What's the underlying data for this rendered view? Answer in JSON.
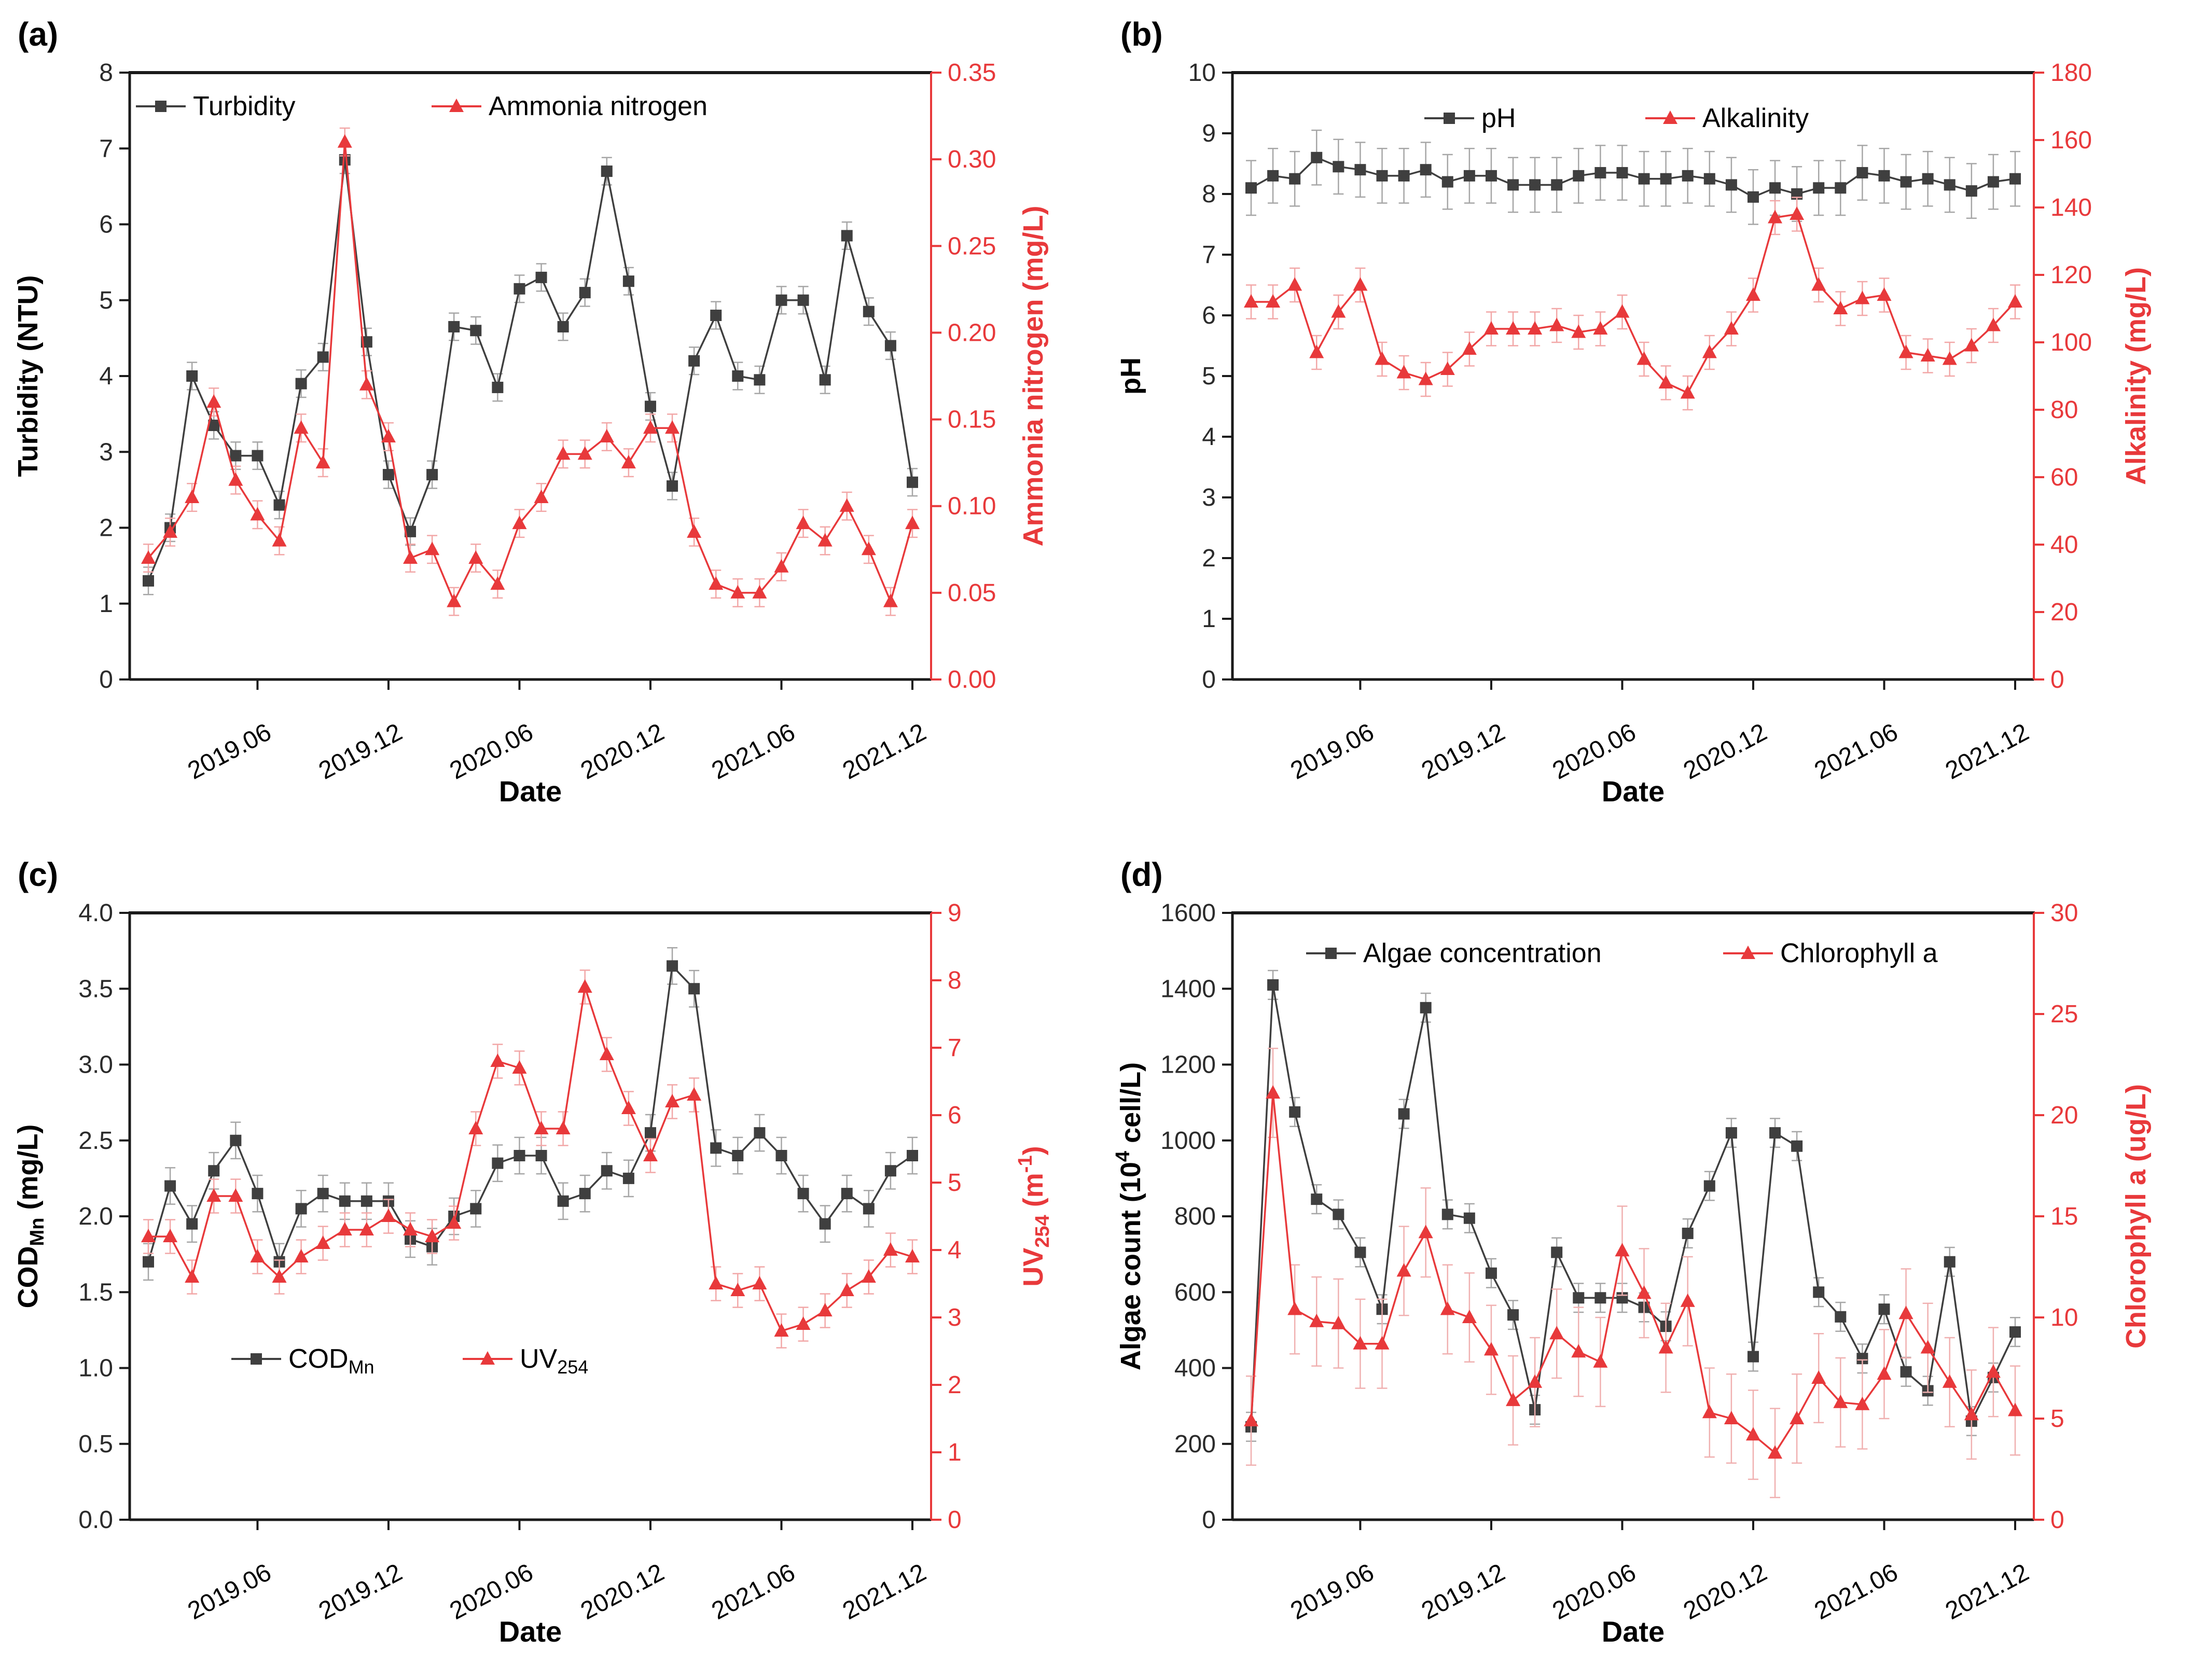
{
  "figure_title": "",
  "accent_colors": {
    "series_black": "#3f3f3f",
    "series_red": "#e8393b",
    "spine_black": "#1a1a1a"
  },
  "chart_data": [
    {
      "id": "a",
      "type": "line",
      "tag": "(a)",
      "xlabel": "Date",
      "x_ticks": [
        {
          "index": 5,
          "label": "2019.06"
        },
        {
          "index": 11,
          "label": "2019.12"
        },
        {
          "index": 17,
          "label": "2020.06"
        },
        {
          "index": 23,
          "label": "2020.12"
        },
        {
          "index": 29,
          "label": "2021.06"
        },
        {
          "index": 35,
          "label": "2021.12"
        }
      ],
      "left_axis": {
        "title": "Turbidity (NTU)",
        "min": 0,
        "max": 8,
        "tick_labels": [
          "0",
          "1",
          "2",
          "3",
          "4",
          "5",
          "6",
          "7",
          "8"
        ],
        "color": "#1a1a1a"
      },
      "right_axis": {
        "title": "Ammonia nitrogen (mg/L)",
        "min": 0,
        "max": 0.35,
        "tick_labels": [
          "0.00",
          "0.05",
          "0.10",
          "0.15",
          "0.20",
          "0.25",
          "0.30",
          "0.35"
        ],
        "color": "#e8393b"
      },
      "series": [
        {
          "name": "Turbidity",
          "axis": "left",
          "marker": "square",
          "color": "#3f3f3f",
          "err": 0.18,
          "err_color": "#a6a6a6",
          "values": [
            1.3,
            2.0,
            4.0,
            3.35,
            2.95,
            2.95,
            2.3,
            3.9,
            4.25,
            6.85,
            4.45,
            2.7,
            1.95,
            2.7,
            4.65,
            4.6,
            3.85,
            5.15,
            5.3,
            4.65,
            5.1,
            6.7,
            5.25,
            3.6,
            2.55,
            4.2,
            4.8,
            4.0,
            3.95,
            5.0,
            5.0,
            3.95,
            5.85,
            4.85,
            4.4,
            2.6
          ]
        },
        {
          "name": "Ammonia nitrogen",
          "axis": "right",
          "marker": "triangle",
          "color": "#e8393b",
          "err": 0.008,
          "err_color": "#f2a7a7",
          "values": [
            0.07,
            0.085,
            0.105,
            0.16,
            0.115,
            0.095,
            0.08,
            0.145,
            0.125,
            0.31,
            0.17,
            0.14,
            0.07,
            0.075,
            0.045,
            0.07,
            0.055,
            0.09,
            0.105,
            0.13,
            0.13,
            0.14,
            0.125,
            0.145,
            0.145,
            0.085,
            0.055,
            0.05,
            0.05,
            0.065,
            0.09,
            0.08,
            0.1,
            0.075,
            0.045,
            0.09
          ]
        }
      ]
    },
    {
      "id": "b",
      "type": "line",
      "tag": "(b)",
      "xlabel": "Date",
      "x_ticks": [
        {
          "index": 5,
          "label": "2019.06"
        },
        {
          "index": 11,
          "label": "2019.12"
        },
        {
          "index": 17,
          "label": "2020.06"
        },
        {
          "index": 23,
          "label": "2020.12"
        },
        {
          "index": 29,
          "label": "2021.06"
        },
        {
          "index": 35,
          "label": "2021.12"
        }
      ],
      "left_axis": {
        "title": "pH",
        "min": 0,
        "max": 10,
        "tick_labels": [
          "0",
          "1",
          "2",
          "3",
          "4",
          "5",
          "6",
          "7",
          "8",
          "9",
          "10"
        ],
        "color": "#1a1a1a"
      },
      "right_axis": {
        "title": "Alkalinity (mg/L)",
        "min": 0,
        "max": 180,
        "tick_labels": [
          "0",
          "20",
          "40",
          "60",
          "80",
          "100",
          "120",
          "140",
          "160",
          "180"
        ],
        "color": "#e8393b"
      },
      "series": [
        {
          "name": "pH",
          "axis": "left",
          "marker": "square",
          "color": "#3f3f3f",
          "err": 0.45,
          "err_color": "#a6a6a6",
          "values": [
            8.1,
            8.3,
            8.25,
            8.6,
            8.45,
            8.4,
            8.3,
            8.3,
            8.4,
            8.2,
            8.3,
            8.3,
            8.15,
            8.15,
            8.15,
            8.3,
            8.35,
            8.35,
            8.25,
            8.25,
            8.3,
            8.25,
            8.15,
            7.95,
            8.1,
            8.0,
            8.1,
            8.1,
            8.35,
            8.3,
            8.2,
            8.25,
            8.15,
            8.05,
            8.2,
            8.25
          ]
        },
        {
          "name": "Alkalinity",
          "axis": "right",
          "marker": "triangle",
          "color": "#e8393b",
          "err": 5,
          "err_color": "#f2a7a7",
          "values": [
            112,
            112,
            117,
            97,
            109,
            117,
            95,
            91,
            89,
            92,
            98,
            104,
            104,
            104,
            105,
            103,
            104,
            109,
            95,
            88,
            85,
            97,
            104,
            114,
            137,
            138,
            117,
            110,
            113,
            114,
            97,
            96,
            95,
            99,
            105,
            112
          ]
        }
      ]
    },
    {
      "id": "c",
      "type": "line",
      "tag": "(c)",
      "xlabel": "Date",
      "x_ticks": [
        {
          "index": 5,
          "label": "2019.06"
        },
        {
          "index": 11,
          "label": "2019.12"
        },
        {
          "index": 17,
          "label": "2020.06"
        },
        {
          "index": 23,
          "label": "2020.12"
        },
        {
          "index": 29,
          "label": "2021.06"
        },
        {
          "index": 35,
          "label": "2021.12"
        }
      ],
      "left_axis": {
        "title": "COD~Mn~ (mg/L)",
        "min": 0,
        "max": 4,
        "tick_labels": [
          "0.0",
          "0.5",
          "1.0",
          "1.5",
          "2.0",
          "2.5",
          "3.0",
          "3.5",
          "4.0"
        ],
        "color": "#1a1a1a"
      },
      "right_axis": {
        "title": "UV~254~ (m^-1^)",
        "min": 0,
        "max": 9,
        "tick_labels": [
          "0",
          "1",
          "2",
          "3",
          "4",
          "5",
          "6",
          "7",
          "8",
          "9"
        ],
        "color": "#e8393b"
      },
      "series": [
        {
          "name": "COD~Mn~",
          "axis": "left",
          "marker": "square",
          "color": "#3f3f3f",
          "err": 0.12,
          "err_color": "#a6a6a6",
          "values": [
            1.7,
            2.2,
            1.95,
            2.3,
            2.5,
            2.15,
            1.7,
            2.05,
            2.15,
            2.1,
            2.1,
            2.1,
            1.85,
            1.8,
            2.0,
            2.05,
            2.35,
            2.4,
            2.4,
            2.1,
            2.15,
            2.3,
            2.25,
            2.55,
            3.65,
            3.5,
            2.45,
            2.4,
            2.55,
            2.4,
            2.15,
            1.95,
            2.15,
            2.05,
            2.3,
            2.4
          ]
        },
        {
          "name": "UV~254~",
          "axis": "right",
          "marker": "triangle",
          "color": "#e8393b",
          "err": 0.25,
          "err_color": "#f2a7a7",
          "values": [
            4.2,
            4.2,
            3.6,
            4.8,
            4.8,
            3.9,
            3.6,
            3.9,
            4.1,
            4.3,
            4.3,
            4.5,
            4.3,
            4.2,
            4.4,
            5.8,
            6.8,
            6.7,
            5.8,
            5.8,
            7.9,
            6.9,
            6.1,
            5.4,
            6.2,
            6.3,
            3.5,
            3.4,
            3.5,
            2.8,
            2.9,
            3.1,
            3.4,
            3.6,
            4.0,
            3.9
          ]
        }
      ]
    },
    {
      "id": "d",
      "type": "line",
      "tag": "(d)",
      "xlabel": "Date",
      "x_ticks": [
        {
          "index": 5,
          "label": "2019.06"
        },
        {
          "index": 11,
          "label": "2019.12"
        },
        {
          "index": 17,
          "label": "2020.06"
        },
        {
          "index": 23,
          "label": "2020.12"
        },
        {
          "index": 29,
          "label": "2021.06"
        },
        {
          "index": 35,
          "label": "2021.12"
        }
      ],
      "left_axis": {
        "title": "Algae count (10^4^ cell/L)",
        "min": 0,
        "max": 1600,
        "tick_labels": [
          "0",
          "200",
          "400",
          "600",
          "800",
          "1000",
          "1200",
          "1400",
          "1600"
        ],
        "color": "#1a1a1a"
      },
      "right_axis": {
        "title": "Chlorophyll a (ug/L)",
        "min": 0,
        "max": 30,
        "tick_labels": [
          "0",
          "5",
          "10",
          "15",
          "20",
          "25",
          "30"
        ],
        "color": "#e8393b"
      },
      "series": [
        {
          "name": "Algae concentration",
          "axis": "left",
          "marker": "square",
          "color": "#3f3f3f",
          "err": 38,
          "err_color": "#a6a6a6",
          "values": [
            245,
            1410,
            1075,
            845,
            805,
            705,
            555,
            1070,
            1350,
            805,
            795,
            650,
            540,
            290,
            705,
            585,
            585,
            585,
            560,
            510,
            755,
            880,
            1020,
            430,
            1020,
            985,
            600,
            535,
            425,
            555,
            390,
            340,
            680,
            260,
            375,
            495
          ]
        },
        {
          "name": "Chlorophyll a",
          "axis": "right",
          "marker": "triangle",
          "color": "#e8393b",
          "err": 2.2,
          "err_color": "#f0b0b0",
          "values": [
            4.9,
            21.1,
            10.4,
            9.8,
            9.7,
            8.7,
            8.7,
            12.3,
            14.2,
            10.4,
            10.0,
            8.4,
            5.9,
            6.8,
            9.2,
            8.3,
            7.8,
            13.3,
            11.2,
            8.5,
            10.8,
            5.3,
            5.0,
            4.2,
            3.3,
            5.0,
            7.0,
            5.8,
            5.7,
            7.2,
            10.2,
            8.5,
            6.8,
            5.2,
            7.3,
            5.4
          ]
        }
      ]
    }
  ]
}
